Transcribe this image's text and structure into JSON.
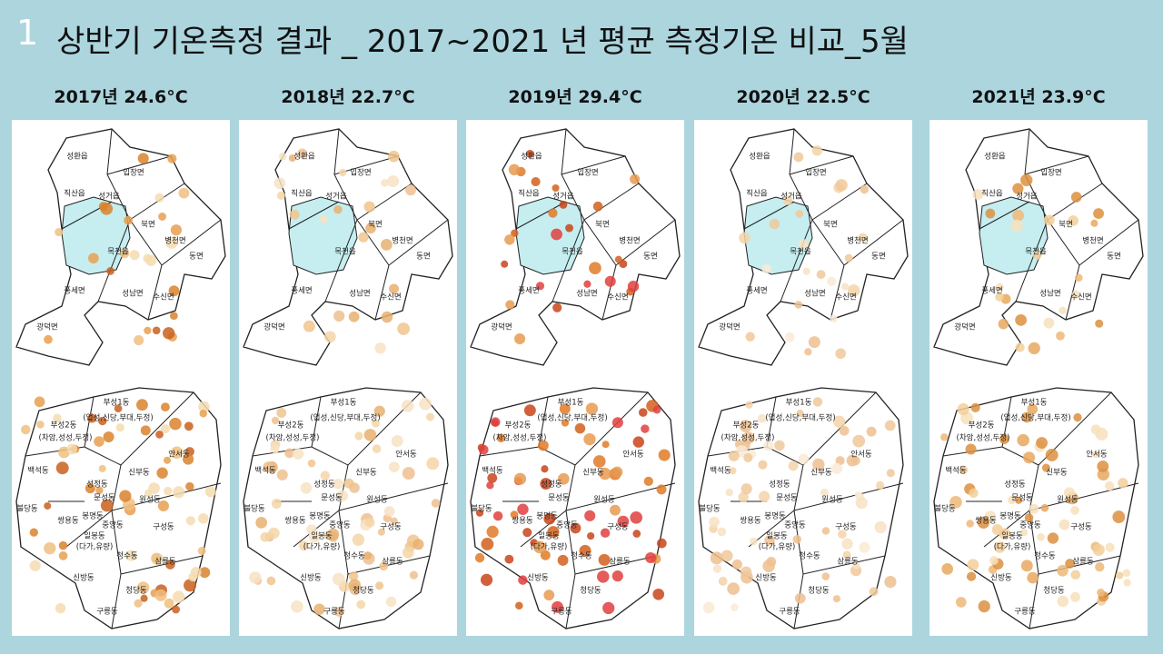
{
  "header": {
    "number": "1",
    "title": "상반기 기온측정 결과 _ 2017~2021 년 평균 측정기온 비교_5월"
  },
  "panels": [
    {
      "label": "2017년 24.6°C"
    },
    {
      "label": "2018년 22.7°C"
    },
    {
      "label": "2019년 29.4°C"
    },
    {
      "label": "2020년 22.5°C"
    },
    {
      "label": "2021년 23.9°C"
    }
  ],
  "upper_regions": [
    "성환읍",
    "입장면",
    "직산읍",
    "성거읍",
    "북면",
    "병천면",
    "목천읍",
    "동면",
    "풍세면",
    "성남면",
    "수신면",
    "광덕면"
  ],
  "lower_regions": [
    "부성1동",
    "(업성,신당,부대,두정)",
    "부성2동",
    "(차암,성성,두정)",
    "안서동",
    "백석동",
    "신부동",
    "성정동",
    "문성동",
    "원성동",
    "불당동",
    "쌍용동",
    "봉명동",
    "중앙동",
    "구성동",
    "일봉동",
    "(다가,유량)",
    "청수동",
    "삼룡동",
    "신방동",
    "청당동",
    "구룡동"
  ]
}
